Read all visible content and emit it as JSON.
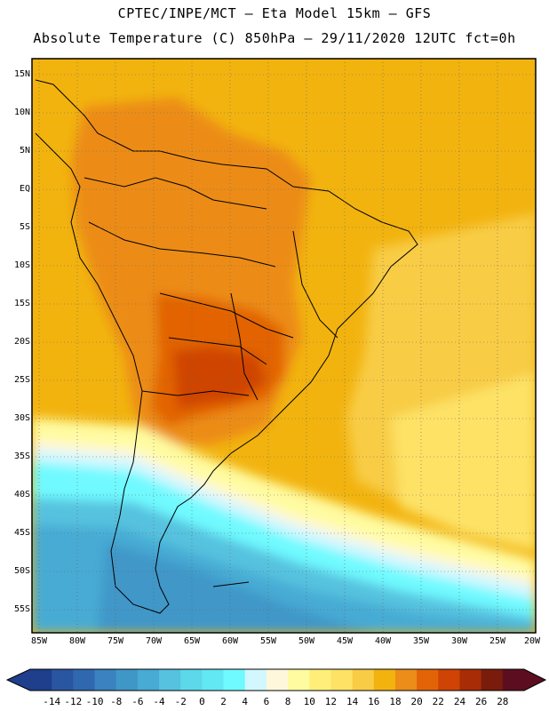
{
  "header": {
    "line1": "CPTEC/INPE/MCT –  Eta Model 15km – GFS",
    "line2": "Absolute Temperature (C) 850hPa – 29/11/2020 12UTC fct=0h"
  },
  "axes": {
    "lat_labels": [
      "15N",
      "10N",
      "5N",
      "EQ",
      "5S",
      "10S",
      "15S",
      "20S",
      "25S",
      "30S",
      "35S",
      "40S",
      "45S",
      "50S",
      "55S"
    ],
    "lon_labels": [
      "85W",
      "80W",
      "75W",
      "70W",
      "65W",
      "60W",
      "55W",
      "50W",
      "45W",
      "40W",
      "35W",
      "30W",
      "25W",
      "20W"
    ]
  },
  "colorbar": {
    "labels": [
      "-14",
      "-12",
      "-10",
      "-8",
      "-6",
      "-4",
      "-2",
      "0",
      "2",
      "4",
      "6",
      "8",
      "10",
      "12",
      "14",
      "16",
      "18",
      "20",
      "22",
      "24",
      "26",
      "28"
    ],
    "colors": [
      "#1f3e8c",
      "#2a55a0",
      "#3068b0",
      "#3a82c0",
      "#3f97c8",
      "#47abd4",
      "#56c2df",
      "#5dd8ea",
      "#62e8f2",
      "#6ffaff",
      "#d2f7ff",
      "#fff7dc",
      "#fffba0",
      "#ffef7a",
      "#fde266",
      "#f8cc45",
      "#f2b30f",
      "#ec8c19",
      "#e26406",
      "#cf4404",
      "#a82c06",
      "#7a1c0c",
      "#5c0e20"
    ]
  },
  "map_data": {
    "region": "South America",
    "variable": "Absolute Temperature (C) 850hPa",
    "lon_range": [
      -86,
      -19.5
    ],
    "lat_range": [
      -58,
      17
    ]
  }
}
